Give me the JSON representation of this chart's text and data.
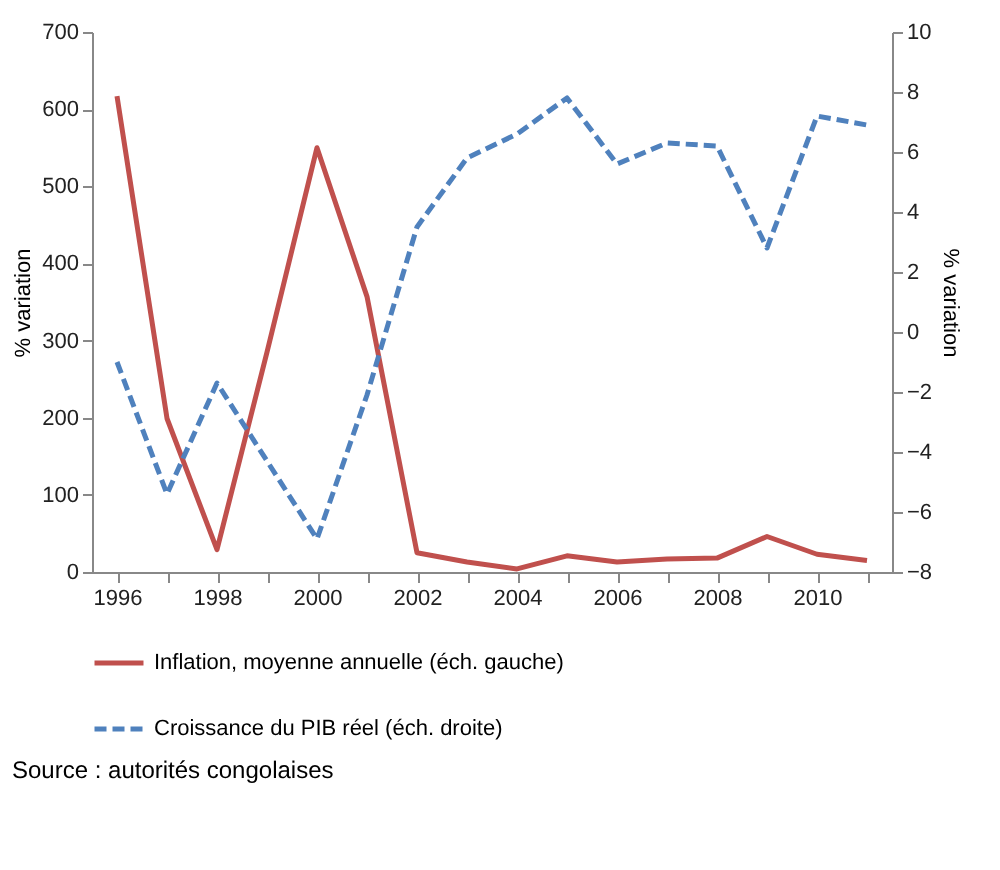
{
  "chart_data": {
    "type": "line",
    "ylabel": "% variation",
    "y2label": "% variation",
    "categories": [
      "1996",
      null,
      "1998",
      null,
      "2000",
      null,
      "2002",
      null,
      "2004",
      null,
      "2006",
      null,
      "2008",
      null,
      "2010",
      null
    ],
    "series": [
      {
        "name": "Inflation, moyenne annuelle (éch. gauche)",
        "color": "#c0504d",
        "line_style": "solid",
        "values": [
          617,
          199,
          29,
          285,
          550,
          357,
          25,
          13,
          4,
          21,
          13,
          17,
          18,
          46,
          23,
          15
        ]
      },
      {
        "name": "Croissance du PIB réel (éch. droite)",
        "color": "#4f81bd",
        "line_style": "dashed",
        "axis": "y2",
        "values": [
          -1.0,
          -5.4,
          -1.7,
          -4.3,
          -6.9,
          -2.1,
          3.5,
          5.8,
          6.6,
          7.8,
          5.6,
          6.3,
          6.2,
          2.8,
          7.2,
          6.9
        ]
      }
    ],
    "ylim": [
      0,
      700
    ],
    "yticks": [
      0,
      100,
      200,
      300,
      400,
      500,
      600,
      700
    ],
    "y2lim": [
      -8,
      10
    ],
    "y2ticks": [
      -8,
      -6,
      -4,
      -2,
      0,
      2,
      4,
      6,
      8,
      10
    ],
    "grid": false,
    "legend": "bottom",
    "marker": "none",
    "annotations": [
      "Source : autorités congolaises"
    ]
  }
}
